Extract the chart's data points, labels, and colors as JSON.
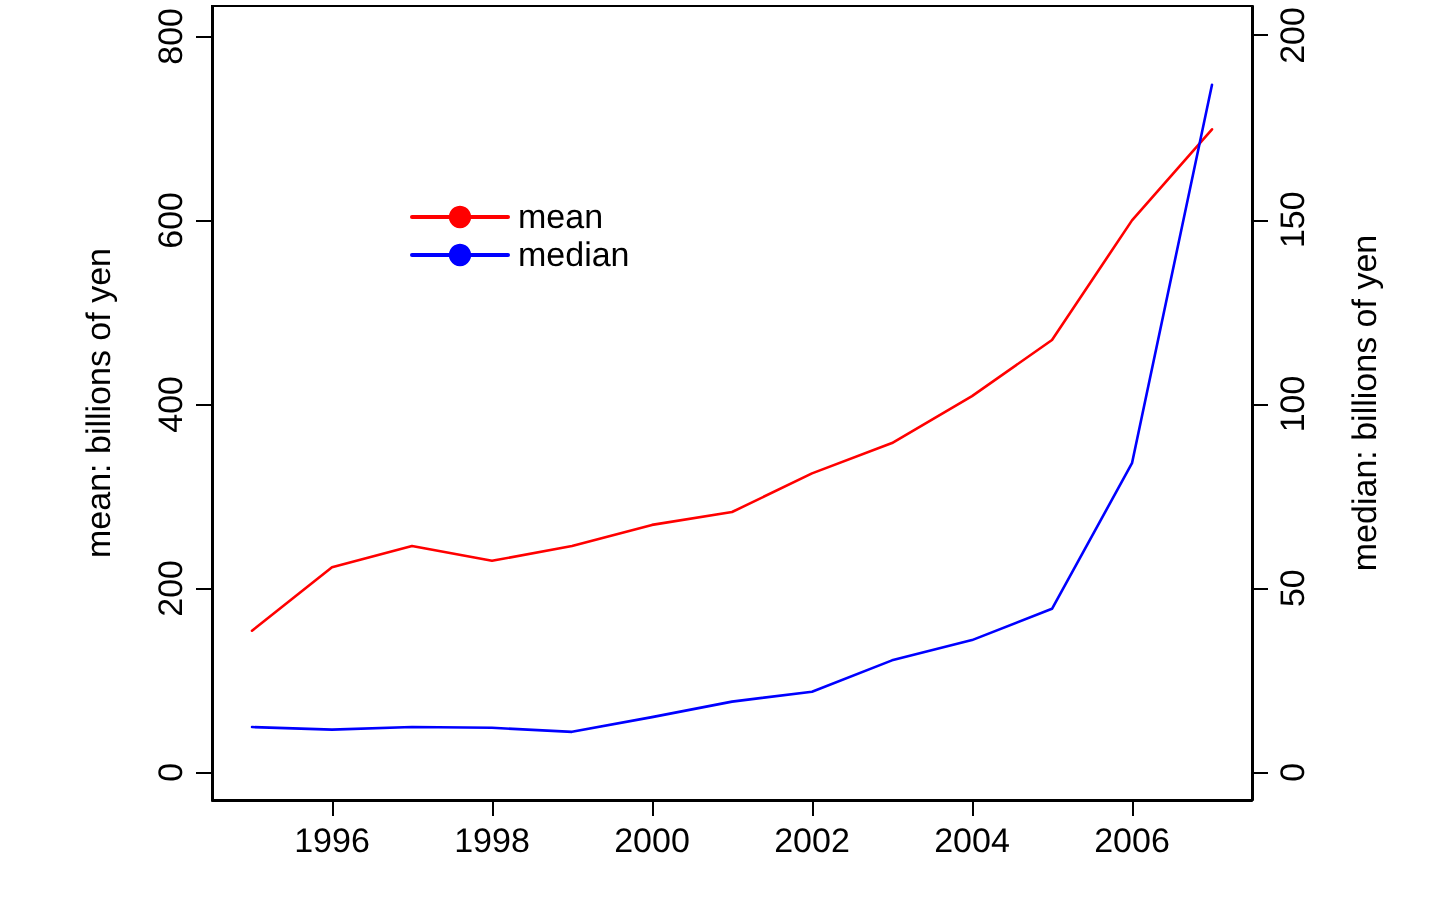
{
  "chart_data": {
    "type": "line",
    "xlabel": null,
    "ylabel": "mean: billions of yen",
    "y2label": "median: billions of yen",
    "x": [
      1995,
      1996,
      1997,
      1998,
      1999,
      2000,
      2001,
      2002,
      2003,
      2004,
      2005,
      2006,
      2007
    ],
    "series": [
      {
        "name": "mean",
        "color": "#ff0000",
        "values": [
          154,
          223,
          246,
          230,
          246,
          269,
          283,
          325,
          358,
          409,
          470,
          600,
          699
        ]
      },
      {
        "name": "median",
        "color": "#0000ff",
        "axis": "y2",
        "values": [
          12.3,
          11.6,
          12.3,
          12.1,
          11.0,
          15.0,
          19.2,
          21.9,
          30.4,
          35.9,
          44.4,
          83.9,
          186.6
        ]
      }
    ],
    "xlim": [
      1994.5,
      2007.5
    ],
    "xticks": [
      1996,
      1998,
      2000,
      2002,
      2004,
      2006
    ],
    "ylim": [
      -30,
      833
    ],
    "yticks": [
      0,
      200,
      400,
      600,
      800
    ],
    "y2lim": [
      -7.5,
      208
    ],
    "y2ticks": [
      0,
      50,
      100,
      150,
      200
    ],
    "legend": "top left",
    "grid": false,
    "marker": "none",
    "line_style": "solid"
  }
}
